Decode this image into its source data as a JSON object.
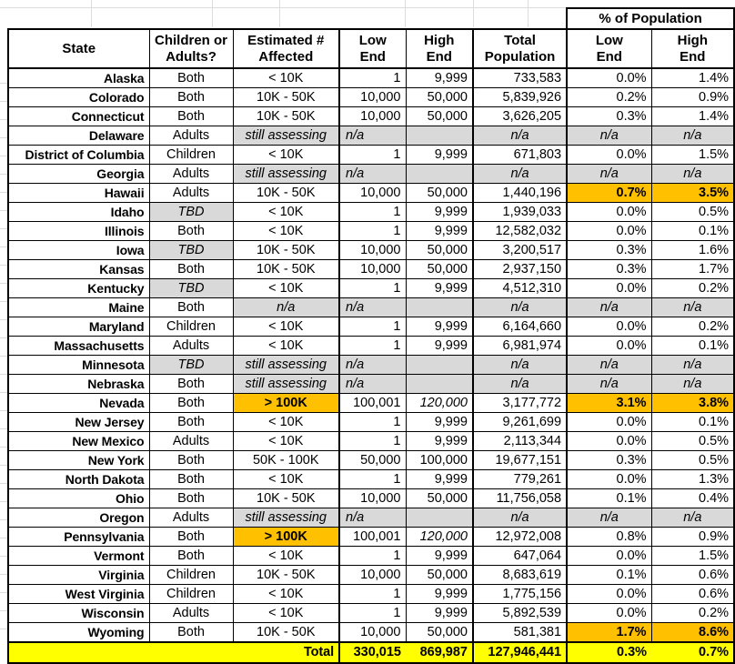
{
  "colors": {
    "highlight_orange": "#FFC000",
    "highlight_yellow": "#FFFF00",
    "shaded_gray": "#D9D9D9",
    "border_black": "#000000"
  },
  "header": {
    "pct_group": "% of Population",
    "state": "State",
    "group": "Children or\nAdults?",
    "estimate": "Estimated #\nAffected",
    "low": "Low\nEnd",
    "high": "High\nEnd",
    "population": "Total\nPopulation",
    "pct_low": "Low\nEnd",
    "pct_high": "High\nEnd"
  },
  "rows": [
    {
      "state": "Alaska",
      "group": "Both",
      "estimate": "< 10K",
      "low": "1",
      "high": "9,999",
      "pop": "733,583",
      "pct_low": "0.0%",
      "pct_high": "1.4%",
      "style": {}
    },
    {
      "state": "Colorado",
      "group": "Both",
      "estimate": "10K - 50K",
      "low": "10,000",
      "high": "50,000",
      "pop": "5,839,926",
      "pct_low": "0.2%",
      "pct_high": "0.9%",
      "style": {}
    },
    {
      "state": "Connecticut",
      "group": "Both",
      "estimate": "10K - 50K",
      "low": "10,000",
      "high": "50,000",
      "pop": "3,626,205",
      "pct_low": "0.3%",
      "pct_high": "1.4%",
      "style": {}
    },
    {
      "state": "Delaware",
      "group": "Adults",
      "estimate": "still assessing",
      "low": "n/a",
      "high": "",
      "pop": "n/a",
      "pct_low": "n/a",
      "pct_high": "n/a",
      "style": {
        "estimate": "gray",
        "na": true
      }
    },
    {
      "state": "District of Columbia",
      "group": "Children",
      "estimate": "< 10K",
      "low": "1",
      "high": "9,999",
      "pop": "671,803",
      "pct_low": "0.0%",
      "pct_high": "1.5%",
      "style": {}
    },
    {
      "state": "Georgia",
      "group": "Adults",
      "estimate": "still assessing",
      "low": "n/a",
      "high": "",
      "pop": "n/a",
      "pct_low": "n/a",
      "pct_high": "n/a",
      "style": {
        "estimate": "gray",
        "na": true
      }
    },
    {
      "state": "Hawaii",
      "group": "Adults",
      "estimate": "10K - 50K",
      "low": "10,000",
      "high": "50,000",
      "pop": "1,440,196",
      "pct_low": "0.7%",
      "pct_high": "3.5%",
      "style": {
        "pct": "orange"
      }
    },
    {
      "state": "Idaho",
      "group": "TBD",
      "estimate": "< 10K",
      "low": "1",
      "high": "9,999",
      "pop": "1,939,033",
      "pct_low": "0.0%",
      "pct_high": "0.5%",
      "style": {
        "group": "tbd"
      }
    },
    {
      "state": "Illinois",
      "group": "Both",
      "estimate": "< 10K",
      "low": "1",
      "high": "9,999",
      "pop": "12,582,032",
      "pct_low": "0.0%",
      "pct_high": "0.1%",
      "style": {}
    },
    {
      "state": "Iowa",
      "group": "TBD",
      "estimate": "10K - 50K",
      "low": "10,000",
      "high": "50,000",
      "pop": "3,200,517",
      "pct_low": "0.3%",
      "pct_high": "1.6%",
      "style": {
        "group": "tbd"
      }
    },
    {
      "state": "Kansas",
      "group": "Both",
      "estimate": "10K - 50K",
      "low": "10,000",
      "high": "50,000",
      "pop": "2,937,150",
      "pct_low": "0.3%",
      "pct_high": "1.7%",
      "style": {}
    },
    {
      "state": "Kentucky",
      "group": "TBD",
      "estimate": "< 10K",
      "low": "1",
      "high": "9,999",
      "pop": "4,512,310",
      "pct_low": "0.0%",
      "pct_high": "0.2%",
      "style": {
        "group": "tbd"
      }
    },
    {
      "state": "Maine",
      "group": "Both",
      "estimate": "n/a",
      "low": "n/a",
      "high": "",
      "pop": "n/a",
      "pct_low": "n/a",
      "pct_high": "n/a",
      "style": {
        "estimate": "gray",
        "na": true
      }
    },
    {
      "state": "Maryland",
      "group": "Children",
      "estimate": "< 10K",
      "low": "1",
      "high": "9,999",
      "pop": "6,164,660",
      "pct_low": "0.0%",
      "pct_high": "0.2%",
      "style": {}
    },
    {
      "state": "Massachusetts",
      "group": "Adults",
      "estimate": "< 10K",
      "low": "1",
      "high": "9,999",
      "pop": "6,981,974",
      "pct_low": "0.0%",
      "pct_high": "0.1%",
      "style": {}
    },
    {
      "state": "Minnesota",
      "group": "TBD",
      "estimate": "still assessing",
      "low": "n/a",
      "high": "",
      "pop": "n/a",
      "pct_low": "n/a",
      "pct_high": "n/a",
      "style": {
        "group": "tbd",
        "estimate": "gray",
        "na": true
      }
    },
    {
      "state": "Nebraska",
      "group": "Both",
      "estimate": "still assessing",
      "low": "n/a",
      "high": "",
      "pop": "n/a",
      "pct_low": "n/a",
      "pct_high": "n/a",
      "style": {
        "estimate": "gray",
        "na": true
      }
    },
    {
      "state": "Nevada",
      "group": "Both",
      "estimate": "> 100K",
      "low": "100,001",
      "high": "120,000",
      "pop": "3,177,772",
      "pct_low": "3.1%",
      "pct_high": "3.8%",
      "style": {
        "estimate": "orange",
        "high_italic": true,
        "pct": "orange"
      }
    },
    {
      "state": "New Jersey",
      "group": "Both",
      "estimate": "< 10K",
      "low": "1",
      "high": "9,999",
      "pop": "9,261,699",
      "pct_low": "0.0%",
      "pct_high": "0.1%",
      "style": {}
    },
    {
      "state": "New Mexico",
      "group": "Adults",
      "estimate": "< 10K",
      "low": "1",
      "high": "9,999",
      "pop": "2,113,344",
      "pct_low": "0.0%",
      "pct_high": "0.5%",
      "style": {}
    },
    {
      "state": "New York",
      "group": "Both",
      "estimate": "50K - 100K",
      "low": "50,000",
      "high": "100,000",
      "pop": "19,677,151",
      "pct_low": "0.3%",
      "pct_high": "0.5%",
      "style": {}
    },
    {
      "state": "North Dakota",
      "group": "Both",
      "estimate": "< 10K",
      "low": "1",
      "high": "9,999",
      "pop": "779,261",
      "pct_low": "0.0%",
      "pct_high": "1.3%",
      "style": {}
    },
    {
      "state": "Ohio",
      "group": "Both",
      "estimate": "10K - 50K",
      "low": "10,000",
      "high": "50,000",
      "pop": "11,756,058",
      "pct_low": "0.1%",
      "pct_high": "0.4%",
      "style": {}
    },
    {
      "state": "Oregon",
      "group": "Adults",
      "estimate": "still assessing",
      "low": "n/a",
      "high": "",
      "pop": "n/a",
      "pct_low": "n/a",
      "pct_high": "n/a",
      "style": {
        "estimate": "gray",
        "na": true
      }
    },
    {
      "state": "Pennsylvania",
      "group": "Both",
      "estimate": "> 100K",
      "low": "100,001",
      "high": "120,000",
      "pop": "12,972,008",
      "pct_low": "0.8%",
      "pct_high": "0.9%",
      "style": {
        "estimate": "orange",
        "high_italic": true
      }
    },
    {
      "state": "Vermont",
      "group": "Both",
      "estimate": "< 10K",
      "low": "1",
      "high": "9,999",
      "pop": "647,064",
      "pct_low": "0.0%",
      "pct_high": "1.5%",
      "style": {}
    },
    {
      "state": "Virginia",
      "group": "Children",
      "estimate": "10K - 50K",
      "low": "10,000",
      "high": "50,000",
      "pop": "8,683,619",
      "pct_low": "0.1%",
      "pct_high": "0.6%",
      "style": {}
    },
    {
      "state": "West Virginia",
      "group": "Children",
      "estimate": "< 10K",
      "low": "1",
      "high": "9,999",
      "pop": "1,775,156",
      "pct_low": "0.0%",
      "pct_high": "0.6%",
      "style": {}
    },
    {
      "state": "Wisconsin",
      "group": "Adults",
      "estimate": "< 10K",
      "low": "1",
      "high": "9,999",
      "pop": "5,892,539",
      "pct_low": "0.0%",
      "pct_high": "0.2%",
      "style": {}
    },
    {
      "state": "Wyoming",
      "group": "Both",
      "estimate": "10K - 50K",
      "low": "10,000",
      "high": "50,000",
      "pop": "581,381",
      "pct_low": "1.7%",
      "pct_high": "8.6%",
      "style": {
        "pct": "orange"
      }
    }
  ],
  "total": {
    "label": "Total",
    "low": "330,015",
    "high": "869,987",
    "population": "127,946,441",
    "pct_low": "0.3%",
    "pct_high": "0.7%"
  }
}
